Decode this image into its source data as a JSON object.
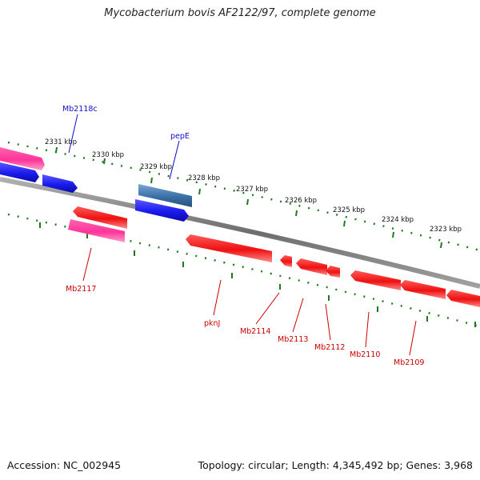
{
  "title": "Mycobacterium bovis AF2122/97, complete genome",
  "footer": {
    "accession": "Accession: NC_002945",
    "summary": "Topology: circular; Length: 4,345,492 bp; Genes: 3,968"
  },
  "colors": {
    "backbone": "#8a8a8a",
    "tick": "#1e7a1e",
    "forward_label": "#1010c8",
    "reverse_label": "#cc0000",
    "forward_gene": "#1a1aee",
    "reverse_gene": "#ee1111",
    "pseudo_gene": "#ff3399",
    "highlight_gene": "#3a6fa8"
  },
  "scale": {
    "upper_labels": [
      "2331 kbp",
      "2330 kbp",
      "2329 kbp",
      "2328 kbp",
      "2327 kbp",
      "2326 kbp",
      "2325 kbp",
      "2324 kbp",
      "2323 kbp"
    ]
  },
  "labels": {
    "forward": [
      {
        "text": "Mb2118c",
        "strand": "forward"
      },
      {
        "text": "pepE",
        "strand": "forward"
      }
    ],
    "reverse": [
      {
        "text": "Mb2117",
        "strand": "reverse"
      },
      {
        "text": "pknJ",
        "strand": "reverse"
      },
      {
        "text": "Mb2114",
        "strand": "reverse"
      },
      {
        "text": "Mb2113",
        "strand": "reverse"
      },
      {
        "text": "Mb2112",
        "strand": "reverse"
      },
      {
        "text": "Mb2110",
        "strand": "reverse"
      },
      {
        "text": "Mb2109",
        "strand": "reverse"
      }
    ]
  }
}
